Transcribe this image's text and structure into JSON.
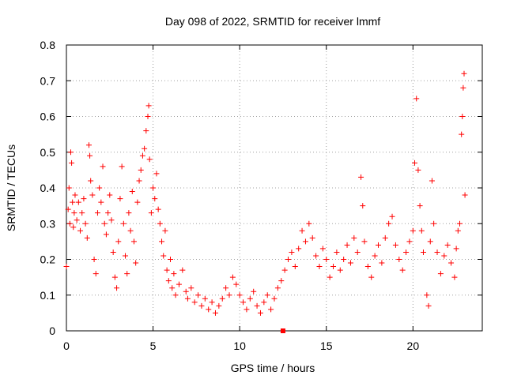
{
  "chart_data": {
    "type": "scatter",
    "title": "Day 098 of 2022, SRMTID for receiver lmmf",
    "xlabel": "GPS time / hours",
    "ylabel": "SRMTID / TECUs",
    "xlim": [
      0,
      24
    ],
    "ylim": [
      0,
      0.8
    ],
    "xticks": [
      0,
      5,
      10,
      15,
      20
    ],
    "yticks": [
      0,
      0.1,
      0.2,
      0.3,
      0.4,
      0.5,
      0.6,
      0.7,
      0.8
    ],
    "grid": true,
    "marker": "plus",
    "color": "#ff0000",
    "series": [
      {
        "name": "SRMTID",
        "points": [
          [
            0.0,
            0.18
          ],
          [
            0.1,
            0.34
          ],
          [
            0.15,
            0.4
          ],
          [
            0.2,
            0.3
          ],
          [
            0.25,
            0.5
          ],
          [
            0.3,
            0.47
          ],
          [
            0.35,
            0.36
          ],
          [
            0.4,
            0.29
          ],
          [
            0.45,
            0.33
          ],
          [
            0.5,
            0.38
          ],
          [
            0.6,
            0.31
          ],
          [
            0.7,
            0.36
          ],
          [
            0.8,
            0.28
          ],
          [
            0.9,
            0.33
          ],
          [
            1.0,
            0.37
          ],
          [
            1.1,
            0.3
          ],
          [
            1.2,
            0.26
          ],
          [
            1.3,
            0.52
          ],
          [
            1.35,
            0.49
          ],
          [
            1.4,
            0.42
          ],
          [
            1.5,
            0.38
          ],
          [
            1.6,
            0.2
          ],
          [
            1.7,
            0.16
          ],
          [
            1.8,
            0.33
          ],
          [
            1.9,
            0.4
          ],
          [
            2.0,
            0.36
          ],
          [
            2.1,
            0.46
          ],
          [
            2.2,
            0.3
          ],
          [
            2.3,
            0.27
          ],
          [
            2.4,
            0.33
          ],
          [
            2.5,
            0.38
          ],
          [
            2.6,
            0.31
          ],
          [
            2.7,
            0.22
          ],
          [
            2.8,
            0.15
          ],
          [
            2.9,
            0.12
          ],
          [
            3.0,
            0.25
          ],
          [
            3.1,
            0.37
          ],
          [
            3.2,
            0.46
          ],
          [
            3.3,
            0.3
          ],
          [
            3.4,
            0.21
          ],
          [
            3.5,
            0.16
          ],
          [
            3.6,
            0.33
          ],
          [
            3.7,
            0.28
          ],
          [
            3.8,
            0.39
          ],
          [
            3.9,
            0.25
          ],
          [
            4.0,
            0.19
          ],
          [
            4.1,
            0.36
          ],
          [
            4.2,
            0.42
          ],
          [
            4.3,
            0.45
          ],
          [
            4.4,
            0.49
          ],
          [
            4.5,
            0.51
          ],
          [
            4.6,
            0.56
          ],
          [
            4.7,
            0.6
          ],
          [
            4.75,
            0.63
          ],
          [
            4.8,
            0.48
          ],
          [
            4.9,
            0.33
          ],
          [
            5.0,
            0.4
          ],
          [
            5.1,
            0.37
          ],
          [
            5.2,
            0.44
          ],
          [
            5.3,
            0.34
          ],
          [
            5.4,
            0.3
          ],
          [
            5.5,
            0.25
          ],
          [
            5.6,
            0.21
          ],
          [
            5.7,
            0.28
          ],
          [
            5.8,
            0.17
          ],
          [
            5.9,
            0.14
          ],
          [
            6.0,
            0.2
          ],
          [
            6.1,
            0.12
          ],
          [
            6.2,
            0.16
          ],
          [
            6.3,
            0.1
          ],
          [
            6.5,
            0.13
          ],
          [
            6.7,
            0.17
          ],
          [
            6.9,
            0.11
          ],
          [
            7.0,
            0.09
          ],
          [
            7.2,
            0.12
          ],
          [
            7.4,
            0.08
          ],
          [
            7.6,
            0.1
          ],
          [
            7.8,
            0.07
          ],
          [
            8.0,
            0.09
          ],
          [
            8.2,
            0.06
          ],
          [
            8.4,
            0.08
          ],
          [
            8.6,
            0.05
          ],
          [
            8.8,
            0.07
          ],
          [
            9.0,
            0.09
          ],
          [
            9.2,
            0.12
          ],
          [
            9.4,
            0.1
          ],
          [
            9.6,
            0.15
          ],
          [
            9.8,
            0.13
          ],
          [
            10.0,
            0.1
          ],
          [
            10.2,
            0.08
          ],
          [
            10.4,
            0.06
          ],
          [
            10.6,
            0.09
          ],
          [
            10.8,
            0.11
          ],
          [
            11.0,
            0.07
          ],
          [
            11.2,
            0.05
          ],
          [
            11.4,
            0.08
          ],
          [
            11.6,
            0.1
          ],
          [
            11.8,
            0.06
          ],
          [
            12.0,
            0.09
          ],
          [
            12.2,
            0.12
          ],
          [
            12.4,
            0.14
          ],
          [
            12.6,
            0.17
          ],
          [
            12.8,
            0.2
          ],
          [
            13.0,
            0.22
          ],
          [
            13.2,
            0.18
          ],
          [
            13.4,
            0.23
          ],
          [
            13.6,
            0.28
          ],
          [
            13.8,
            0.25
          ],
          [
            14.0,
            0.3
          ],
          [
            14.2,
            0.26
          ],
          [
            14.4,
            0.21
          ],
          [
            14.6,
            0.18
          ],
          [
            14.8,
            0.23
          ],
          [
            15.0,
            0.2
          ],
          [
            15.2,
            0.15
          ],
          [
            15.4,
            0.18
          ],
          [
            15.6,
            0.22
          ],
          [
            15.8,
            0.17
          ],
          [
            16.0,
            0.2
          ],
          [
            16.2,
            0.24
          ],
          [
            16.4,
            0.19
          ],
          [
            16.6,
            0.26
          ],
          [
            16.8,
            0.22
          ],
          [
            17.0,
            0.43
          ],
          [
            17.1,
            0.35
          ],
          [
            17.2,
            0.25
          ],
          [
            17.4,
            0.18
          ],
          [
            17.6,
            0.15
          ],
          [
            17.8,
            0.21
          ],
          [
            18.0,
            0.24
          ],
          [
            18.2,
            0.19
          ],
          [
            18.4,
            0.26
          ],
          [
            18.6,
            0.3
          ],
          [
            18.8,
            0.32
          ],
          [
            19.0,
            0.24
          ],
          [
            19.2,
            0.2
          ],
          [
            19.4,
            0.17
          ],
          [
            19.6,
            0.22
          ],
          [
            19.8,
            0.25
          ],
          [
            20.0,
            0.28
          ],
          [
            20.1,
            0.47
          ],
          [
            20.2,
            0.65
          ],
          [
            20.3,
            0.45
          ],
          [
            20.4,
            0.35
          ],
          [
            20.5,
            0.28
          ],
          [
            20.6,
            0.22
          ],
          [
            20.8,
            0.1
          ],
          [
            20.9,
            0.07
          ],
          [
            21.0,
            0.25
          ],
          [
            21.1,
            0.42
          ],
          [
            21.2,
            0.3
          ],
          [
            21.4,
            0.22
          ],
          [
            21.6,
            0.16
          ],
          [
            21.8,
            0.21
          ],
          [
            22.0,
            0.24
          ],
          [
            22.2,
            0.19
          ],
          [
            22.4,
            0.15
          ],
          [
            22.5,
            0.23
          ],
          [
            22.6,
            0.28
          ],
          [
            22.7,
            0.3
          ],
          [
            22.8,
            0.55
          ],
          [
            22.85,
            0.6
          ],
          [
            22.9,
            0.68
          ],
          [
            22.95,
            0.72
          ],
          [
            23.0,
            0.38
          ]
        ]
      }
    ],
    "outlier_marker": {
      "x": 12.5,
      "y": 0.0
    }
  }
}
